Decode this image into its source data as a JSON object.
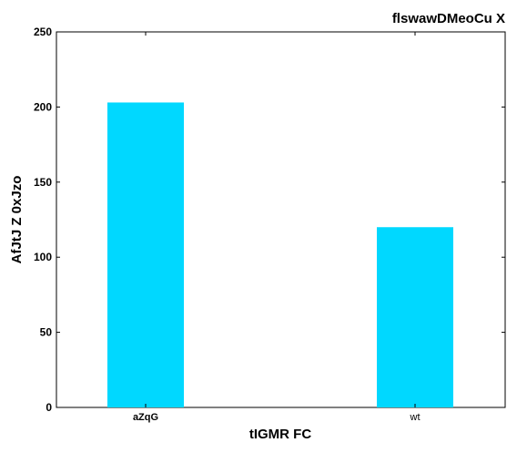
{
  "chart_data": {
    "type": "bar",
    "title": "flswawDMeoCu X",
    "xlabel": "tIGMR FC",
    "ylabel": "AfJtJ Z 0xJzo",
    "categories": [
      "aZqG",
      "wt"
    ],
    "values": [
      203,
      120
    ],
    "yticks": [
      0,
      50,
      100,
      150,
      200,
      250
    ],
    "ylim": [
      0,
      250
    ],
    "bar_color": "#00d8ff",
    "grid": false
  }
}
